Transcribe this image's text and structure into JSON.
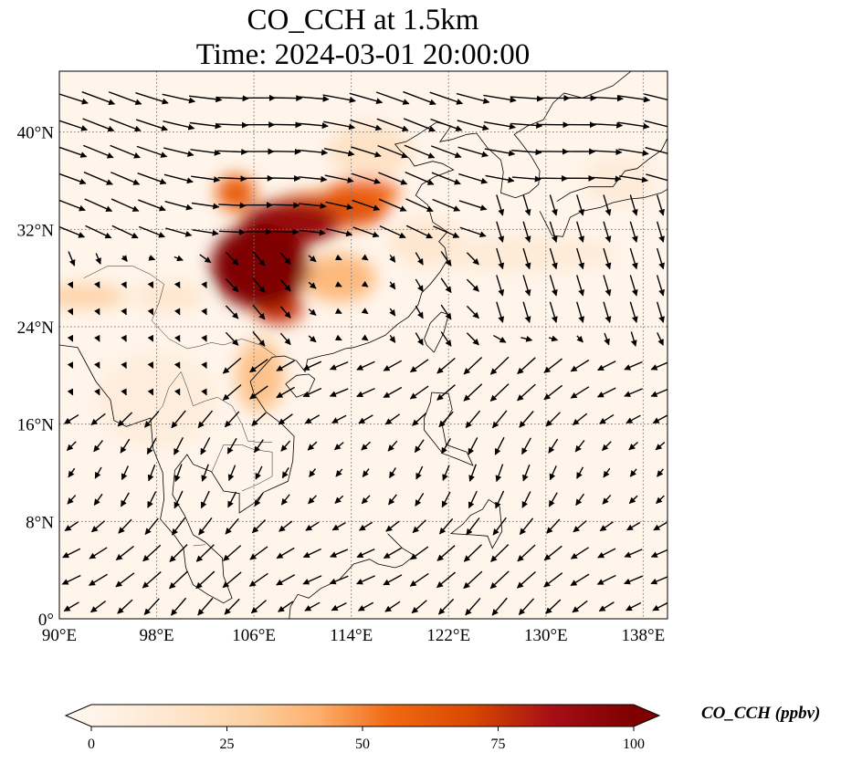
{
  "figure": {
    "title_line1": "CO_CCH at 1.5km",
    "title_line2": "Time: 2024-03-01 20:00:00"
  },
  "map": {
    "lon_range": [
      90,
      140
    ],
    "lat_range": [
      0,
      45
    ],
    "lon_ticks": [
      {
        "value": 90,
        "label": "90°E"
      },
      {
        "value": 98,
        "label": "98°E"
      },
      {
        "value": 106,
        "label": "106°E"
      },
      {
        "value": 114,
        "label": "114°E"
      },
      {
        "value": 122,
        "label": "122°E"
      },
      {
        "value": 130,
        "label": "130°E"
      },
      {
        "value": 138,
        "label": "138°E"
      }
    ],
    "lat_ticks": [
      {
        "value": 0,
        "label": "0°"
      },
      {
        "value": 8,
        "label": "8°N"
      },
      {
        "value": 16,
        "label": "16°N"
      },
      {
        "value": 24,
        "label": "24°N"
      },
      {
        "value": 32,
        "label": "32°N"
      },
      {
        "value": 40,
        "label": "40°N"
      }
    ],
    "gridlines": true,
    "background_color": "#fff5eb",
    "plumes": [
      {
        "lon": 106.5,
        "lat": 29.0,
        "rlon": 4.0,
        "rlat": 3.5,
        "value": 100
      },
      {
        "lon": 109.0,
        "lat": 32.5,
        "rlon": 4.0,
        "rlat": 1.8,
        "value": 90
      },
      {
        "lon": 112.0,
        "lat": 33.5,
        "rlon": 5.0,
        "rlat": 1.5,
        "value": 65
      },
      {
        "lon": 115.0,
        "lat": 35.0,
        "rlon": 3.0,
        "rlat": 1.2,
        "value": 55
      },
      {
        "lon": 108.0,
        "lat": 25.5,
        "rlon": 2.0,
        "rlat": 1.3,
        "value": 75
      },
      {
        "lon": 104.5,
        "lat": 35.0,
        "rlon": 1.6,
        "rlat": 1.5,
        "value": 60
      },
      {
        "lon": 113.0,
        "lat": 28.0,
        "rlon": 3.0,
        "rlat": 2.0,
        "value": 38
      },
      {
        "lon": 115.5,
        "lat": 38.5,
        "rlon": 3.5,
        "rlat": 2.2,
        "value": 18
      },
      {
        "lon": 106.5,
        "lat": 20.0,
        "rlon": 2.0,
        "rlat": 3.0,
        "value": 35
      },
      {
        "lon": 92.0,
        "lat": 26.5,
        "rlon": 3.5,
        "rlat": 1.0,
        "value": 28
      },
      {
        "lon": 99.0,
        "lat": 26.5,
        "rlon": 3.0,
        "rlat": 1.3,
        "value": 14
      },
      {
        "lon": 128.0,
        "lat": 30.0,
        "rlon": 8.0,
        "rlat": 1.5,
        "value": 10
      },
      {
        "lon": 98.0,
        "lat": 18.0,
        "rlon": 5.0,
        "rlat": 4.0,
        "value": 8
      },
      {
        "lon": 120.0,
        "lat": 31.0,
        "rlon": 3.0,
        "rlat": 2.0,
        "value": 14
      },
      {
        "lon": 136.0,
        "lat": 36.0,
        "rlon": 3.0,
        "rlat": 2.0,
        "value": 10
      }
    ],
    "wind_field": {
      "lon_start": 91,
      "lon_step": 2.2,
      "lat_start": 1,
      "lat_step": 2.2,
      "arrow_scale": 4.5
    },
    "coastlines": [
      [
        [
          90,
          22.5
        ],
        [
          91.5,
          22.3
        ],
        [
          92.2,
          21
        ],
        [
          93,
          19.5
        ],
        [
          94.2,
          18
        ],
        [
          94.5,
          16.3
        ],
        [
          95.5,
          15.8
        ],
        [
          97.5,
          16.5
        ],
        [
          97.7,
          14
        ],
        [
          98.5,
          12
        ],
        [
          98.6,
          9.8
        ],
        [
          98.3,
          8.2
        ],
        [
          99.5,
          6.8
        ],
        [
          100.2,
          5.8
        ],
        [
          100.4,
          4.2
        ],
        [
          101,
          2.8
        ],
        [
          102.2,
          2
        ],
        [
          103.5,
          1.3
        ],
        [
          104.2,
          1.7
        ],
        [
          103.5,
          3.5
        ],
        [
          103.4,
          5
        ],
        [
          102,
          6.3
        ],
        [
          101,
          6.9
        ],
        [
          100.3,
          8.5
        ],
        [
          99.3,
          10.2
        ],
        [
          99.5,
          12.2
        ],
        [
          100.5,
          13.5
        ],
        [
          101,
          12.7
        ],
        [
          102.5,
          12.1
        ],
        [
          103.5,
          10.5
        ],
        [
          104.8,
          10.3
        ],
        [
          104.8,
          8.7
        ],
        [
          106,
          9.5
        ],
        [
          106.8,
          10.4
        ],
        [
          108.8,
          11.3
        ],
        [
          109.2,
          13
        ],
        [
          109.3,
          15
        ],
        [
          108.3,
          16
        ],
        [
          107,
          17
        ],
        [
          106,
          18.5
        ],
        [
          105.7,
          19.5
        ],
        [
          106.6,
          20.5
        ],
        [
          107.5,
          21.5
        ],
        [
          108.5,
          21.6
        ],
        [
          109.5,
          21.2
        ],
        [
          110.2,
          20.3
        ],
        [
          110.4,
          21.3
        ],
        [
          111.5,
          21.6
        ],
        [
          112.5,
          21.8
        ],
        [
          113.5,
          22.2
        ],
        [
          114.2,
          22.3
        ],
        [
          115.5,
          22.7
        ],
        [
          116.8,
          23.3
        ],
        [
          117.8,
          24.2
        ],
        [
          118.7,
          24.8
        ],
        [
          119.5,
          25.8
        ],
        [
          119.8,
          26.8
        ],
        [
          120.5,
          27.5
        ],
        [
          121.3,
          28.5
        ],
        [
          121.9,
          29.5
        ],
        [
          121.7,
          30.5
        ],
        [
          121.2,
          31
        ],
        [
          121.9,
          31.8
        ],
        [
          120.7,
          32.6
        ],
        [
          120.3,
          34
        ],
        [
          119.3,
          34.8
        ],
        [
          119.8,
          35.7
        ],
        [
          120.8,
          36.3
        ],
        [
          122.4,
          36.9
        ],
        [
          121.5,
          37.4
        ],
        [
          120.7,
          37.6
        ],
        [
          119.2,
          37.2
        ],
        [
          118.8,
          37.8
        ],
        [
          118,
          38.5
        ],
        [
          117.6,
          39
        ],
        [
          118.5,
          39.2
        ],
        [
          119.5,
          39.8
        ],
        [
          121,
          40.8
        ],
        [
          122.2,
          40.5
        ],
        [
          121.3,
          39.2
        ],
        [
          122.3,
          39.4
        ],
        [
          123.5,
          39.8
        ],
        [
          124.3,
          39.9
        ],
        [
          125.2,
          38.7
        ],
        [
          126.3,
          37.7
        ],
        [
          126.5,
          36.7
        ],
        [
          126.3,
          35
        ],
        [
          127.5,
          34.6
        ],
        [
          128.6,
          35
        ],
        [
          129.4,
          35.7
        ],
        [
          129.5,
          36.8
        ],
        [
          128.8,
          38
        ],
        [
          127.9,
          39.2
        ],
        [
          127.4,
          39.8
        ],
        [
          128.5,
          40.5
        ],
        [
          129.8,
          41
        ],
        [
          130.6,
          42.4
        ],
        [
          131.5,
          43.2
        ],
        [
          133,
          42.8
        ],
        [
          135.5,
          43.8
        ],
        [
          137,
          45
        ]
      ],
      [
        [
          108.6,
          19.3
        ],
        [
          109.5,
          18.2
        ],
        [
          110.5,
          18.6
        ],
        [
          111,
          19.7
        ],
        [
          110.5,
          20.1
        ],
        [
          109.5,
          20
        ],
        [
          108.6,
          19.3
        ]
      ],
      [
        [
          120.2,
          22.5
        ],
        [
          120.8,
          21.9
        ],
        [
          121.6,
          23.5
        ],
        [
          122,
          25
        ],
        [
          121.4,
          25.2
        ],
        [
          120.5,
          24.3
        ],
        [
          120,
          23
        ],
        [
          120.2,
          22.5
        ]
      ],
      [
        [
          120.6,
          18.6
        ],
        [
          122,
          18.5
        ],
        [
          122.3,
          17.2
        ],
        [
          121.5,
          15.8
        ],
        [
          121.8,
          14.3
        ],
        [
          123.5,
          13.7
        ],
        [
          124,
          12.6
        ],
        [
          122.8,
          13.1
        ],
        [
          121.5,
          13.6
        ],
        [
          120.8,
          14.5
        ],
        [
          120,
          15.5
        ],
        [
          120,
          16.5
        ],
        [
          120.5,
          17.8
        ],
        [
          120.6,
          18.6
        ]
      ],
      [
        [
          125.3,
          9.8
        ],
        [
          126.2,
          9.2
        ],
        [
          126.4,
          7.2
        ],
        [
          125.6,
          5.8
        ],
        [
          125.2,
          6.8
        ],
        [
          124,
          6.9
        ],
        [
          122.2,
          7
        ],
        [
          123.2,
          7.8
        ],
        [
          123.8,
          8.5
        ],
        [
          124.8,
          9
        ],
        [
          125.3,
          9.8
        ]
      ],
      [
        [
          117,
          7
        ],
        [
          118.2,
          5.8
        ],
        [
          119.2,
          5.2
        ],
        [
          118.2,
          4.4
        ],
        [
          117.6,
          4.2
        ],
        [
          116.2,
          4.5
        ],
        [
          115.5,
          4.9
        ],
        [
          114.2,
          4.5
        ],
        [
          113,
          3.2
        ],
        [
          111.5,
          2.5
        ],
        [
          110.5,
          1.7
        ],
        [
          109.6,
          2
        ],
        [
          109,
          1
        ],
        [
          108.9,
          0
        ]
      ],
      [
        [
          129.5,
          33.5
        ],
        [
          130.5,
          31.5
        ],
        [
          131.4,
          31.4
        ],
        [
          132,
          33
        ],
        [
          133,
          33.5
        ],
        [
          134.5,
          33.8
        ],
        [
          135.5,
          34.2
        ],
        [
          136.9,
          34.5
        ],
        [
          138,
          34.6
        ],
        [
          139.5,
          35
        ],
        [
          140,
          35.3
        ]
      ],
      [
        [
          130.9,
          34.3
        ],
        [
          132,
          35
        ],
        [
          133.5,
          35.5
        ],
        [
          135.5,
          35.5
        ],
        [
          136.5,
          36.8
        ],
        [
          137.5,
          37
        ],
        [
          138.5,
          37.8
        ],
        [
          139.5,
          38.5
        ],
        [
          140,
          39.5
        ]
      ]
    ],
    "borders": [
      [
        [
          92,
          28
        ],
        [
          94,
          29
        ],
        [
          96,
          29
        ],
        [
          97.5,
          28.3
        ],
        [
          98.6,
          27.5
        ],
        [
          98.2,
          26
        ],
        [
          97.6,
          24.5
        ],
        [
          99,
          23
        ],
        [
          100.5,
          22.2
        ],
        [
          101.5,
          22.4
        ],
        [
          102.5,
          22.7
        ],
        [
          103.5,
          22.5
        ],
        [
          105,
          23
        ],
        [
          106.5,
          22.5
        ],
        [
          107.8,
          21.6
        ]
      ],
      [
        [
          100,
          20.3
        ],
        [
          100.5,
          19
        ],
        [
          101,
          17.5
        ],
        [
          102,
          17.9
        ],
        [
          103,
          18.2
        ],
        [
          104.2,
          17.5
        ],
        [
          105,
          16
        ],
        [
          105.5,
          14.6
        ],
        [
          106.5,
          14.5
        ],
        [
          107.5,
          14.5
        ]
      ],
      [
        [
          97.7,
          16.5
        ],
        [
          98.5,
          17.5
        ],
        [
          99,
          19
        ],
        [
          100,
          20.3
        ]
      ],
      [
        [
          102.5,
          12
        ],
        [
          103.5,
          14.3
        ],
        [
          105,
          14.3
        ],
        [
          106,
          13.9
        ],
        [
          107.5,
          13.7
        ],
        [
          107.5,
          11.7
        ],
        [
          106.2,
          11
        ],
        [
          105,
          10.5
        ]
      ],
      [
        [
          101,
          6
        ],
        [
          102,
          6.1
        ]
      ]
    ]
  },
  "colorbar": {
    "label": "CO_CCH (ppbv)",
    "min": 0,
    "max": 100,
    "ticks": [
      {
        "value": 0,
        "label": "0"
      },
      {
        "value": 25,
        "label": "25"
      },
      {
        "value": 50,
        "label": "50"
      },
      {
        "value": 75,
        "label": "75"
      },
      {
        "value": 100,
        "label": "100"
      }
    ],
    "stops": [
      {
        "value": 0,
        "color": "#fff5eb"
      },
      {
        "value": 15,
        "color": "#fee6ce"
      },
      {
        "value": 30,
        "color": "#fdd0a2"
      },
      {
        "value": 42,
        "color": "#fdae6b"
      },
      {
        "value": 55,
        "color": "#f16913"
      },
      {
        "value": 70,
        "color": "#d94801"
      },
      {
        "value": 85,
        "color": "#a50f15"
      },
      {
        "value": 100,
        "color": "#7f0000"
      }
    ]
  }
}
